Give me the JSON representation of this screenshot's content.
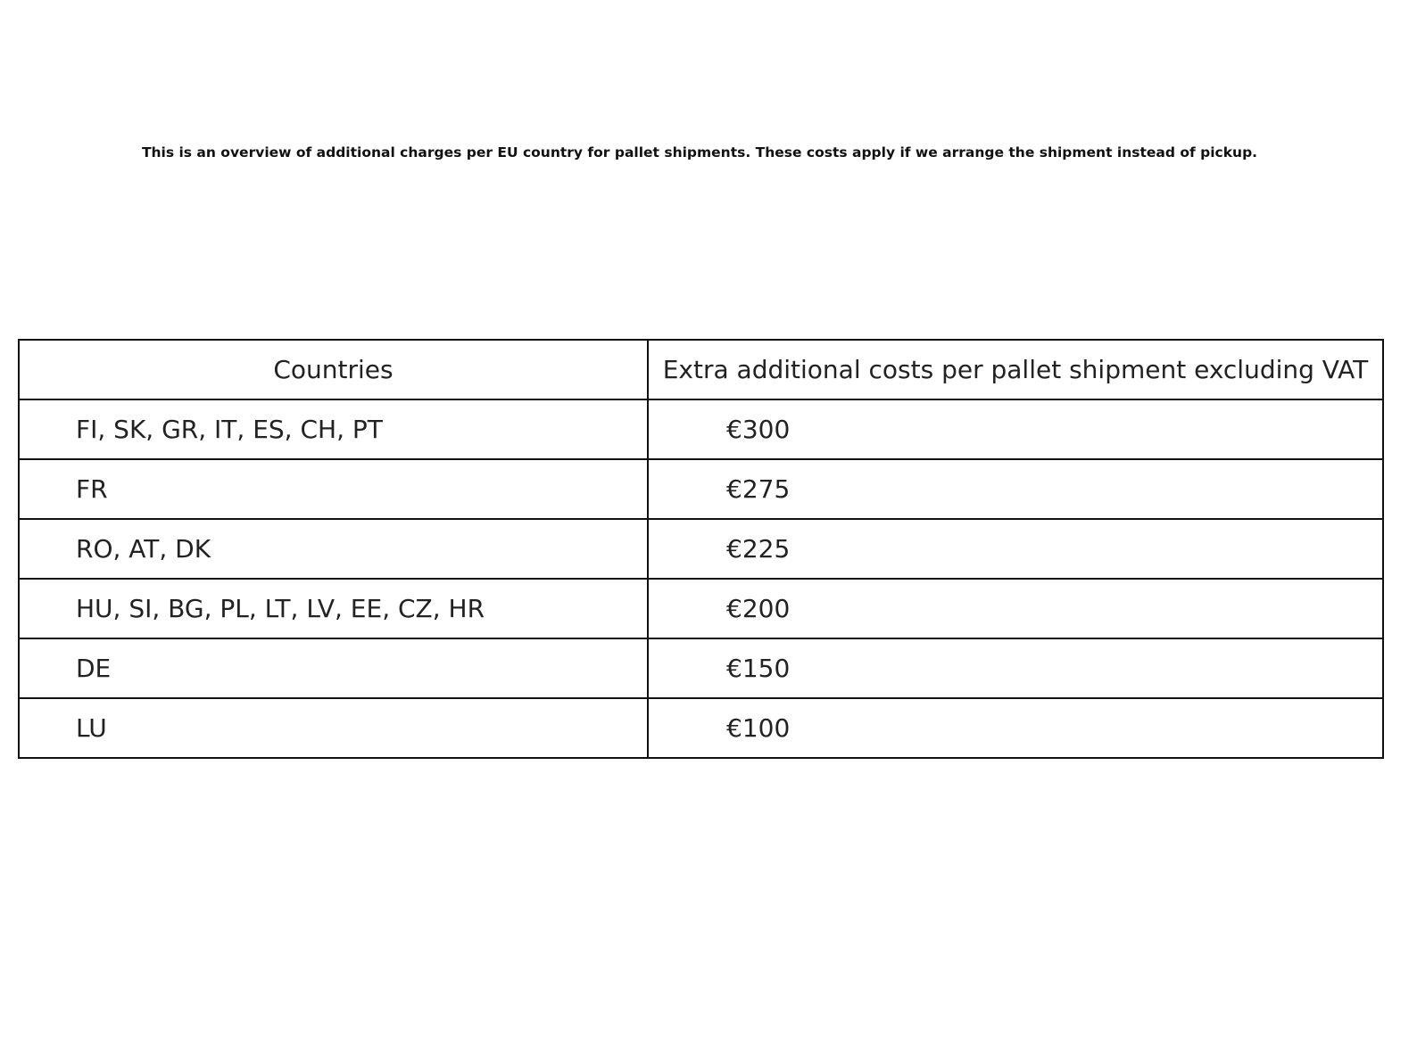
{
  "title": "This is an overview of additional charges per EU country for pallet shipments. These costs apply if we arrange the shipment instead of pickup.",
  "chart_data": {
    "type": "table",
    "columns": [
      "Countries",
      "Extra additional costs per pallet shipment excluding VAT"
    ],
    "rows": [
      [
        "FI, SK, GR, IT, ES, CH, PT",
        "€300"
      ],
      [
        "FR",
        "€275"
      ],
      [
        "RO, AT, DK",
        "€225"
      ],
      [
        "HU, SI, BG, PL, LT, LV, EE, CZ, HR",
        "€200"
      ],
      [
        "DE",
        "€150"
      ],
      [
        "LU",
        "€100"
      ]
    ]
  }
}
